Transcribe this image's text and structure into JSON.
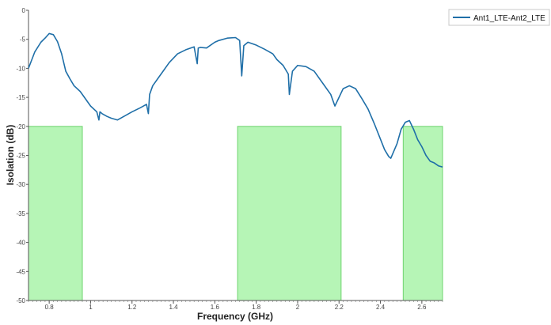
{
  "chart_data": {
    "type": "line",
    "title": "",
    "xlabel": "Frequency (GHz)",
    "ylabel": "Isolation (dB)",
    "xlim": [
      0.7,
      2.7
    ],
    "ylim": [
      -50,
      0
    ],
    "x_ticks": [
      0.8,
      1,
      1.2,
      1.4,
      1.6,
      1.8,
      2,
      2.2,
      2.4,
      2.6
    ],
    "x_tick_labels": [
      "0.8",
      "1",
      "1.2",
      "1.4",
      "1.6",
      "1.8",
      "2",
      "2.2",
      "2.4",
      "2.6"
    ],
    "y_ticks": [
      0,
      -5,
      -10,
      -15,
      -20,
      -25,
      -30,
      -35,
      -40,
      -45,
      -50
    ],
    "y_tick_labels": [
      "0",
      "-5",
      "-10",
      "-15",
      "-20",
      "-25",
      "-30",
      "-35",
      "-40",
      "-45",
      "-50"
    ],
    "grid": false,
    "legend_position": "top-right",
    "series": [
      {
        "name": "Ant1_LTE-Ant2_LTE",
        "color": "#1f6fa8",
        "x": [
          0.7,
          0.73,
          0.76,
          0.78,
          0.8,
          0.82,
          0.84,
          0.86,
          0.88,
          0.9,
          0.92,
          0.95,
          0.98,
          1.0,
          1.03,
          1.04,
          1.045,
          1.055,
          1.08,
          1.1,
          1.13,
          1.16,
          1.2,
          1.24,
          1.27,
          1.279,
          1.285,
          1.3,
          1.34,
          1.38,
          1.42,
          1.46,
          1.5,
          1.515,
          1.52,
          1.53,
          1.56,
          1.6,
          1.62,
          1.66,
          1.7,
          1.72,
          1.73,
          1.74,
          1.76,
          1.8,
          1.84,
          1.88,
          1.9,
          1.93,
          1.955,
          1.96,
          1.975,
          2.0,
          2.04,
          2.08,
          2.12,
          2.16,
          2.18,
          2.2,
          2.22,
          2.25,
          2.28,
          2.31,
          2.34,
          2.37,
          2.4,
          2.42,
          2.44,
          2.45,
          2.48,
          2.5,
          2.52,
          2.54,
          2.56,
          2.58,
          2.6,
          2.62,
          2.64,
          2.66,
          2.68,
          2.7
        ],
        "values": [
          -10,
          -7.2,
          -5.5,
          -4.8,
          -4,
          -4.2,
          -5.4,
          -7.5,
          -10.5,
          -11.8,
          -13,
          -14,
          -15.5,
          -16.5,
          -17.5,
          -18.9,
          -17.5,
          -17.8,
          -18.3,
          -18.6,
          -18.9,
          -18.3,
          -17.5,
          -16.8,
          -16.2,
          -17.8,
          -14.5,
          -13,
          -11,
          -9,
          -7.5,
          -6.8,
          -6.3,
          -9.2,
          -6.5,
          -6.4,
          -6.5,
          -5.5,
          -5.2,
          -4.8,
          -4.7,
          -5.2,
          -11.3,
          -6.1,
          -5.5,
          -6,
          -6.7,
          -7.5,
          -8.5,
          -9.5,
          -11,
          -14.5,
          -10.5,
          -9.5,
          -9.7,
          -10.5,
          -12.5,
          -14.5,
          -16.5,
          -15,
          -13.5,
          -13,
          -13.5,
          -15.2,
          -17,
          -19.5,
          -22.2,
          -24,
          -25.2,
          -25.5,
          -23,
          -20.5,
          -19.3,
          -19,
          -20.5,
          -22.3,
          -23.5,
          -25,
          -26,
          -26.3,
          -26.8,
          -27
        ]
      }
    ],
    "shaded_regions": [
      {
        "x0": 0.7,
        "x1": 0.96,
        "y0": -50,
        "y1": -20,
        "color": "#9ef19e"
      },
      {
        "x0": 1.71,
        "x1": 2.21,
        "y0": -50,
        "y1": -20,
        "color": "#9ef19e"
      },
      {
        "x0": 2.51,
        "x1": 2.7,
        "y0": -50,
        "y1": -20,
        "color": "#9ef19e"
      }
    ]
  }
}
